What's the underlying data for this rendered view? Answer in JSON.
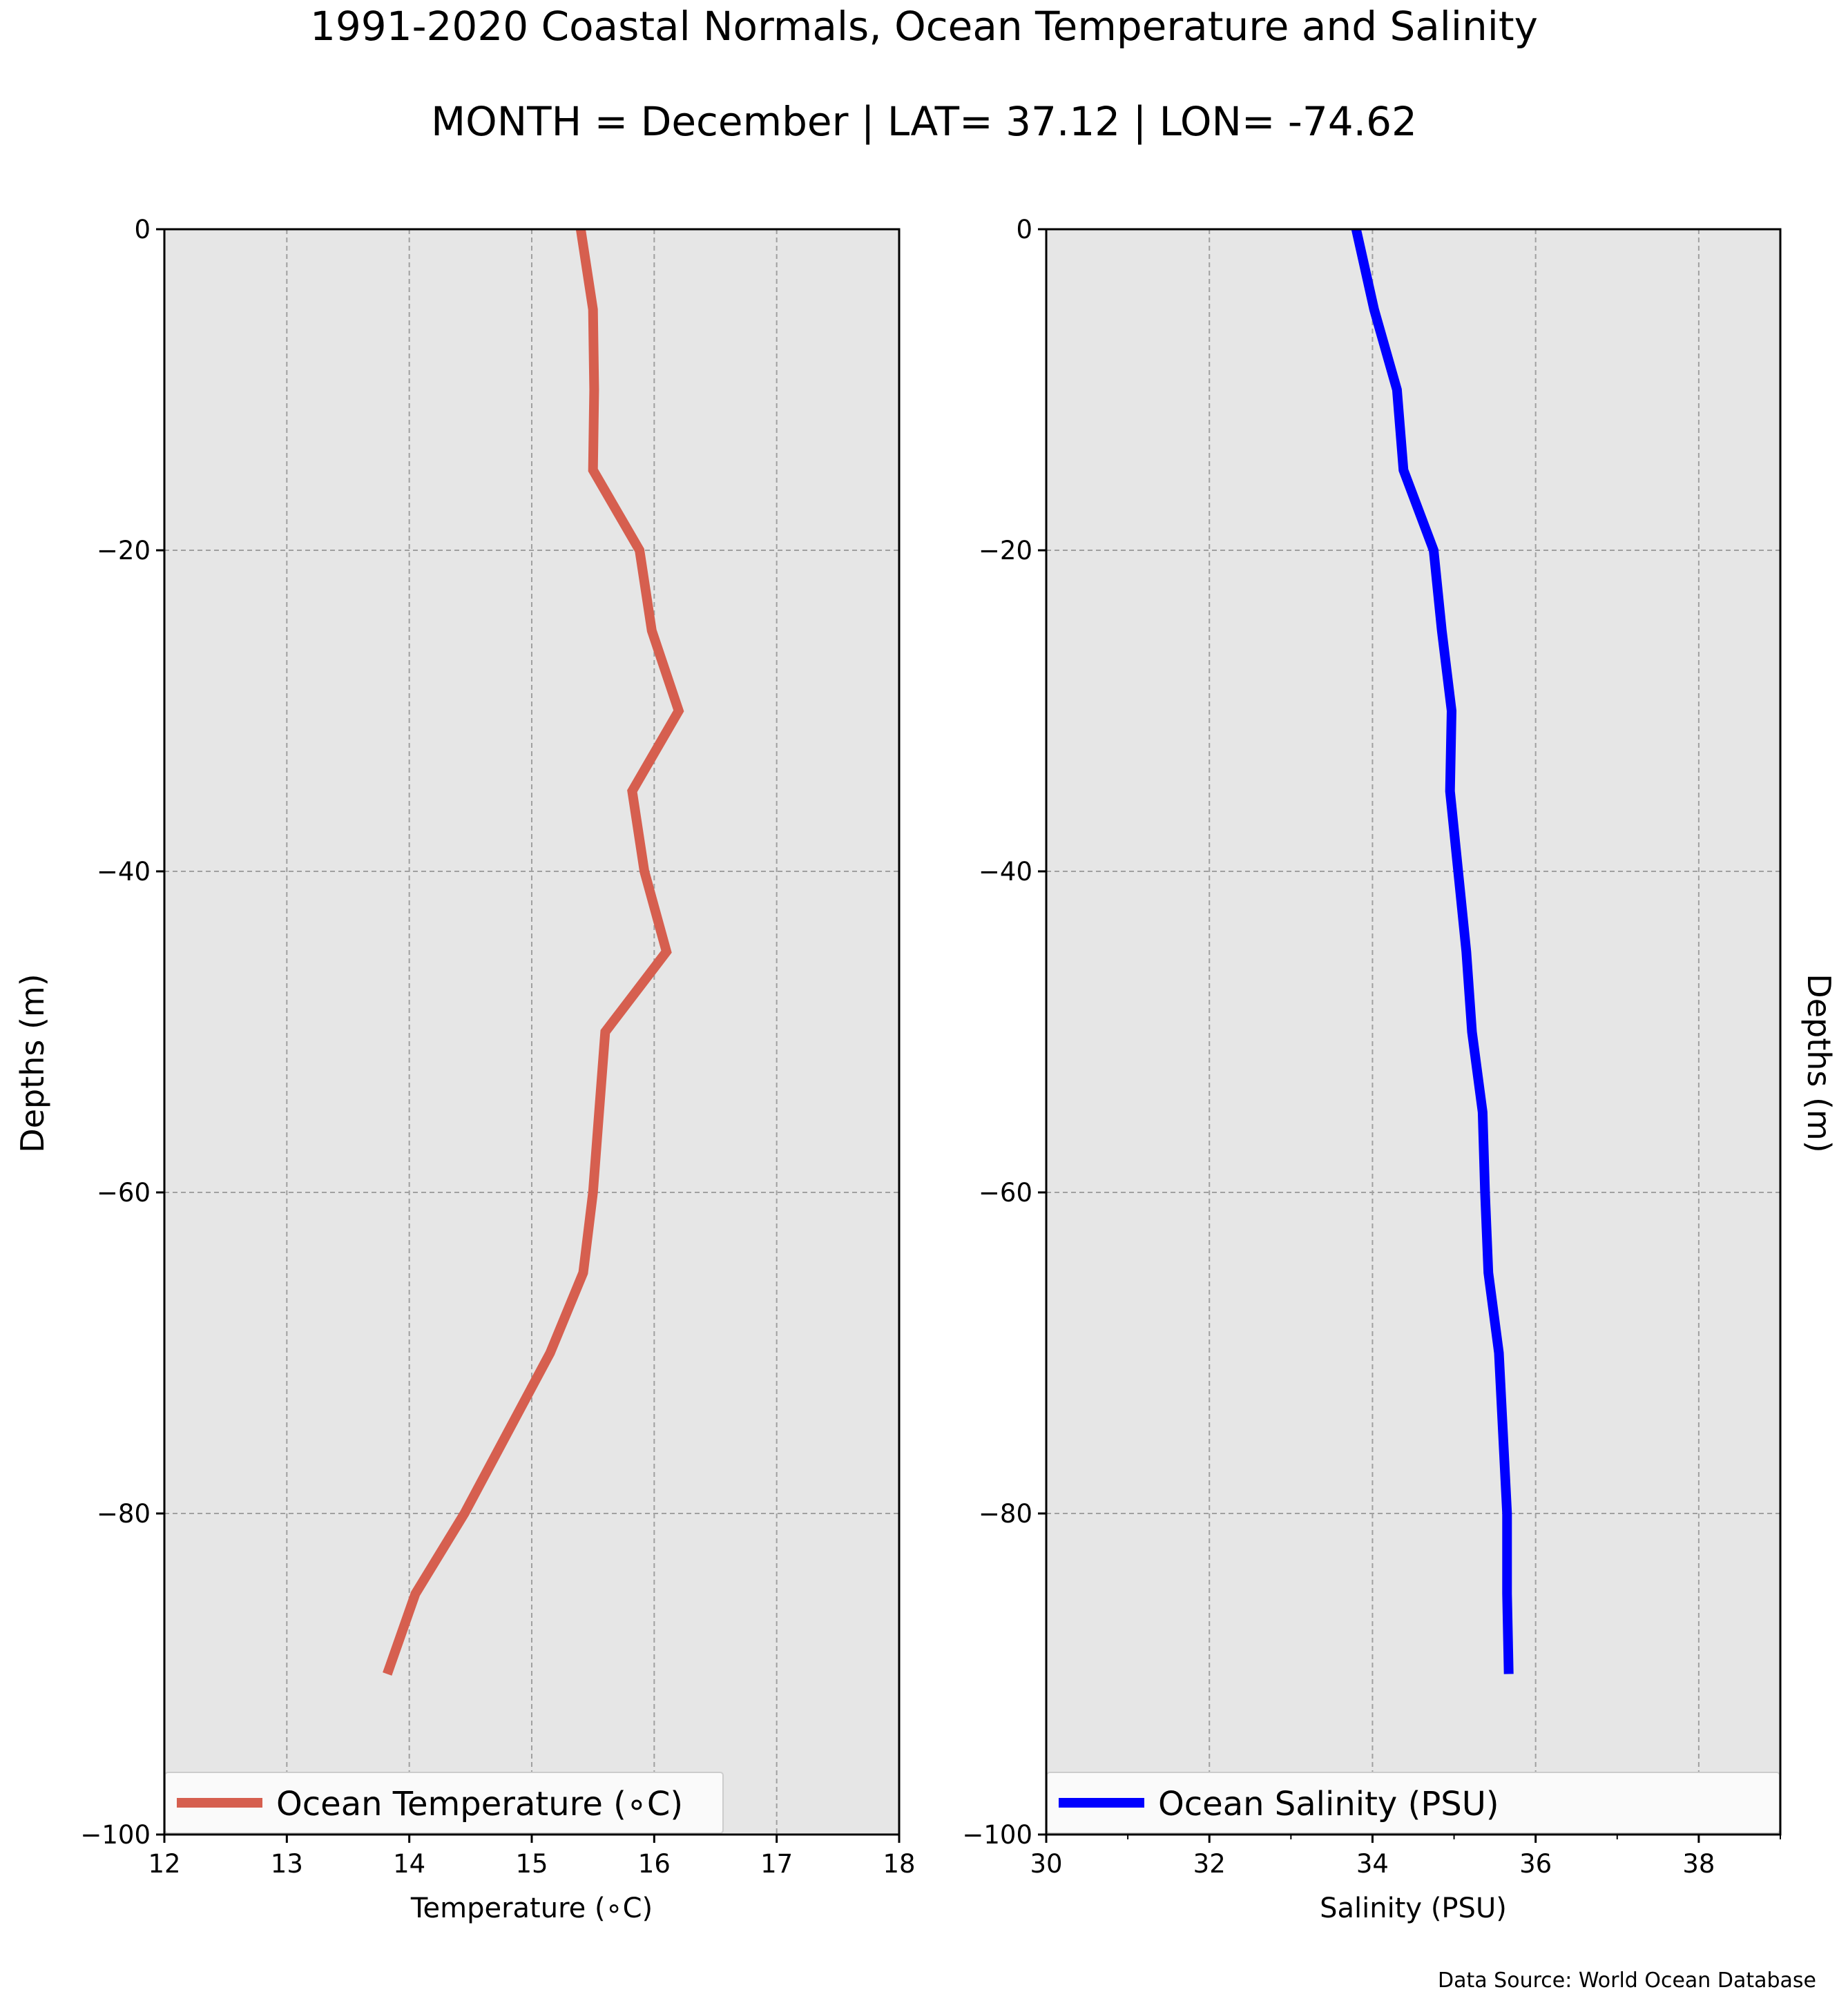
{
  "figure": {
    "title": "1991-2020 Coastal Normals, Ocean Temperature and Salinity",
    "subtitle": "MONTH = December | LAT= 37.12 | LON= -74.62",
    "source": "Data Source: World Ocean Database"
  },
  "colors": {
    "background": "#ffffff",
    "plot_bg": "#e6e6e6",
    "grid": "#a0a0a0",
    "temperature": "#d65f4f",
    "salinity": "#0000ff"
  },
  "chart_data": [
    {
      "type": "line",
      "xlabel": "Temperature (∘C)",
      "ylabel": "Depths (m)",
      "xlim": [
        12,
        18
      ],
      "ylim": [
        -100,
        0
      ],
      "xticks": [
        "12",
        "13",
        "14",
        "15",
        "16",
        "17",
        "18"
      ],
      "yticks": [
        "0",
        "−20",
        "−40",
        "−60",
        "−80",
        "−100"
      ],
      "grid": true,
      "legend": "bottom",
      "series": [
        {
          "name": "Ocean Temperature (∘C)",
          "color": "#d65f4f",
          "x": [
            15.4,
            15.5,
            15.51,
            15.5,
            15.88,
            15.98,
            16.2,
            15.82,
            15.92,
            16.1,
            15.6,
            15.55,
            15.5,
            15.42,
            15.15,
            14.8,
            14.45,
            14.05,
            13.82
          ],
          "y": [
            0,
            -5,
            -10,
            -15,
            -20,
            -25,
            -30,
            -35,
            -40,
            -45,
            -50,
            -55,
            -60,
            -65,
            -70,
            -75,
            -80,
            -85,
            -90
          ]
        }
      ]
    },
    {
      "type": "line",
      "xlabel": "Salinity (PSU)",
      "ylabel": "Depths (m)",
      "xlim": [
        30,
        39
      ],
      "ylim": [
        -100,
        0
      ],
      "xticks": [
        "30",
        "32",
        "34",
        "36",
        "38"
      ],
      "yticks": [
        "0",
        "−20",
        "−40",
        "−60",
        "−80",
        "−100"
      ],
      "grid": true,
      "legend": "bottom",
      "series": [
        {
          "name": "Ocean Salinity (PSU)",
          "color": "#0000ff",
          "x": [
            33.8,
            34.02,
            34.3,
            34.38,
            34.75,
            34.85,
            34.97,
            34.95,
            35.05,
            35.15,
            35.22,
            35.35,
            35.38,
            35.42,
            35.55,
            35.6,
            35.65,
            35.65,
            35.67
          ],
          "y": [
            0,
            -5,
            -10,
            -15,
            -20,
            -25,
            -30,
            -35,
            -40,
            -45,
            -50,
            -55,
            -60,
            -65,
            -70,
            -75,
            -80,
            -85,
            -90
          ]
        }
      ]
    }
  ]
}
